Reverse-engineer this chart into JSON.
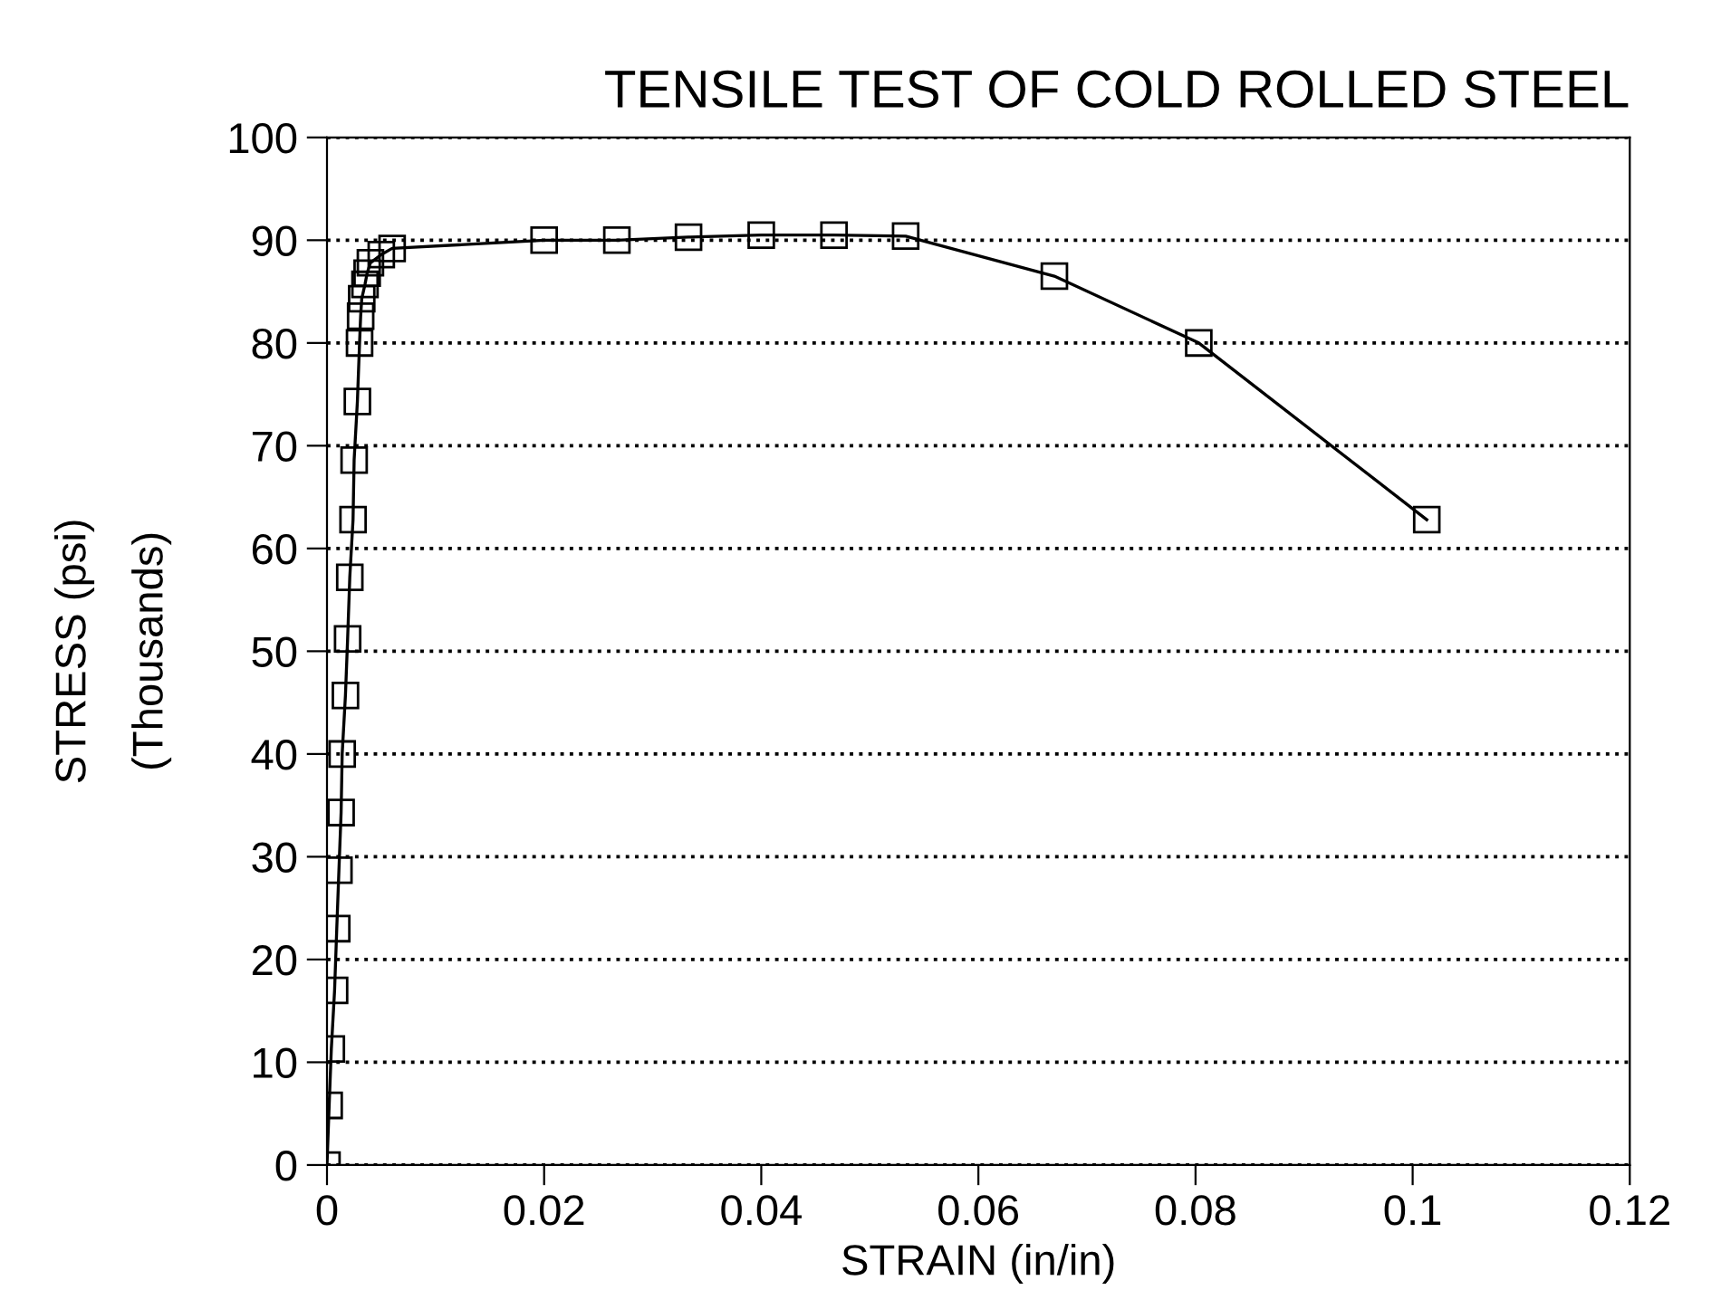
{
  "chart_data": {
    "type": "line",
    "title": "TENSILE TEST OF COLD ROLLED STEEL",
    "xlabel": "STRAIN (in/in)",
    "ylabel": "STRESS (psi)\n(Thousands)",
    "series": [
      {
        "color": "#000000",
        "x": [
          0,
          0.0002,
          0.0004,
          0.0007,
          0.0009,
          0.0011,
          0.0013,
          0.0014,
          0.0017,
          0.0019,
          0.0021,
          0.0024,
          0.0025,
          0.0028,
          0.003,
          0.0031,
          0.0032,
          0.0035,
          0.0037,
          0.004,
          0.005,
          0.006,
          0.02,
          0.0267,
          0.0333,
          0.04,
          0.0467,
          0.0533,
          0.067,
          0.0803,
          0.1013
        ],
        "values": [
          0,
          5.8,
          11.3,
          17,
          23,
          28.7,
          34.3,
          40,
          45.7,
          51.2,
          57.2,
          62.8,
          68.6,
          74.3,
          80,
          82.6,
          84.3,
          85.7,
          86.8,
          87.8,
          88.6,
          89.2,
          90,
          90,
          90.3,
          90.5,
          90.5,
          90.4,
          86.5,
          80,
          62.8
        ]
      }
    ],
    "marker": "square",
    "line_style": "solid",
    "grid": "y",
    "legend": false,
    "xlim": [
      0,
      0.12
    ],
    "xticks": [
      0,
      0.02,
      0.04,
      0.06,
      0.08,
      0.1,
      0.12
    ],
    "ylim": [
      0,
      100
    ],
    "yticks": [
      0,
      10,
      20,
      30,
      40,
      50,
      60,
      70,
      80,
      90,
      100
    ]
  }
}
